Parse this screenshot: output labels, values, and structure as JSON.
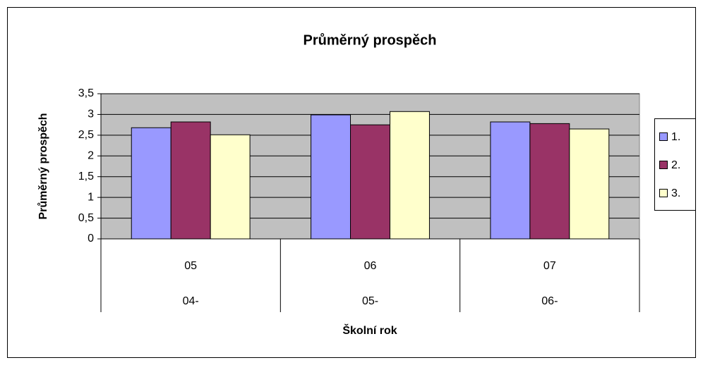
{
  "chart_data": {
    "type": "bar",
    "title": "Průměrný prospěch",
    "y_label": "Průměrný prospěch",
    "x_label": "Školní rok",
    "categories": [
      "05",
      "06",
      "07"
    ],
    "category_groups": [
      "04-",
      "05-",
      "06-"
    ],
    "series": [
      {
        "name": "1.",
        "color": "#9999ff",
        "values": [
          2.68,
          2.99,
          2.82
        ]
      },
      {
        "name": "2.",
        "color": "#993366",
        "values": [
          2.82,
          2.75,
          2.78
        ]
      },
      {
        "name": "3.",
        "color": "#ffffcc",
        "values": [
          2.51,
          3.07,
          2.65
        ]
      }
    ],
    "ylim": [
      0,
      3.5
    ],
    "yticks": [
      0,
      {
        "value": 0.5,
        "label": "0,5"
      },
      1,
      {
        "value": 1.5,
        "label": "1,5"
      },
      2,
      {
        "value": 2.5,
        "label": "2,5"
      },
      3,
      {
        "value": 3.5,
        "label": "3,5"
      }
    ],
    "grid": true,
    "legend": "right",
    "plot_background": "#c0c0c0"
  }
}
